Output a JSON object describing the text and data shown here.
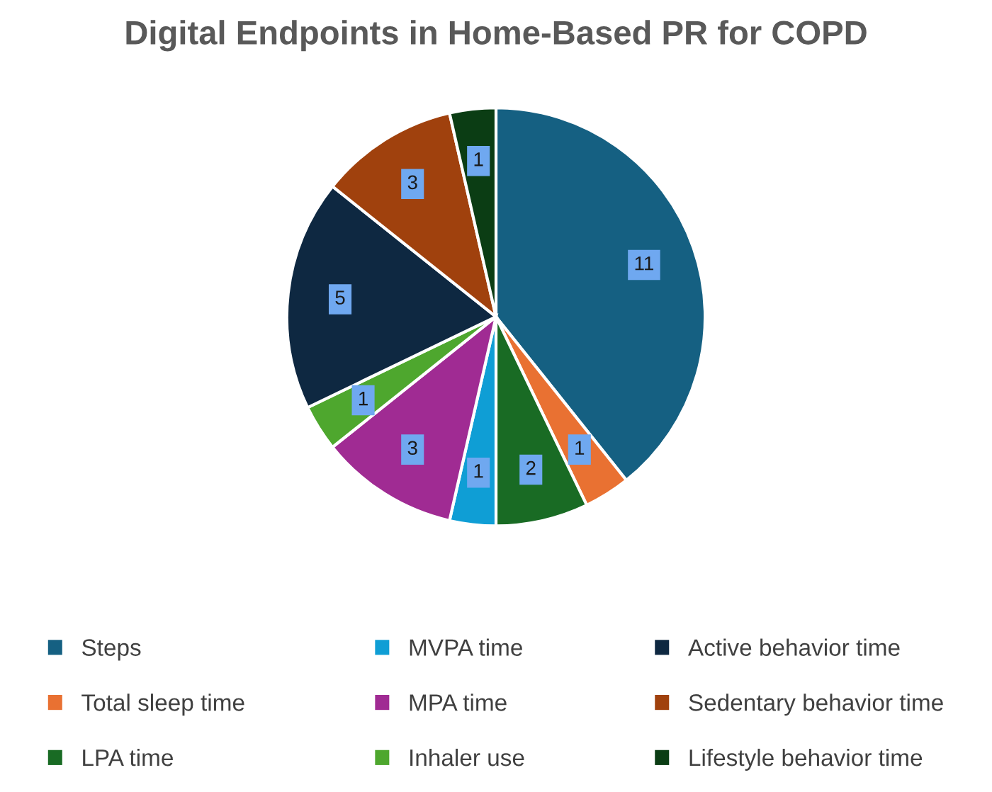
{
  "chart_data": {
    "type": "pie",
    "title": "Digital Endpoints in Home-Based PR for COPD",
    "categories": [
      "Steps",
      "Total sleep time",
      "LPA time",
      "MVPA time",
      "MPA time",
      "Inhaler use",
      "Active behavior time",
      "Sedentary behavior time",
      "Lifestyle behavior time"
    ],
    "values": [
      11,
      1,
      2,
      1,
      3,
      1,
      5,
      3,
      1
    ],
    "colors": [
      "#156082",
      "#e97132",
      "#196b24",
      "#0f9ed5",
      "#a02b93",
      "#4ea72e",
      "#0e2841",
      "#a0410d",
      "#0b3d14"
    ],
    "data_labels": true,
    "legend": "bottom"
  }
}
